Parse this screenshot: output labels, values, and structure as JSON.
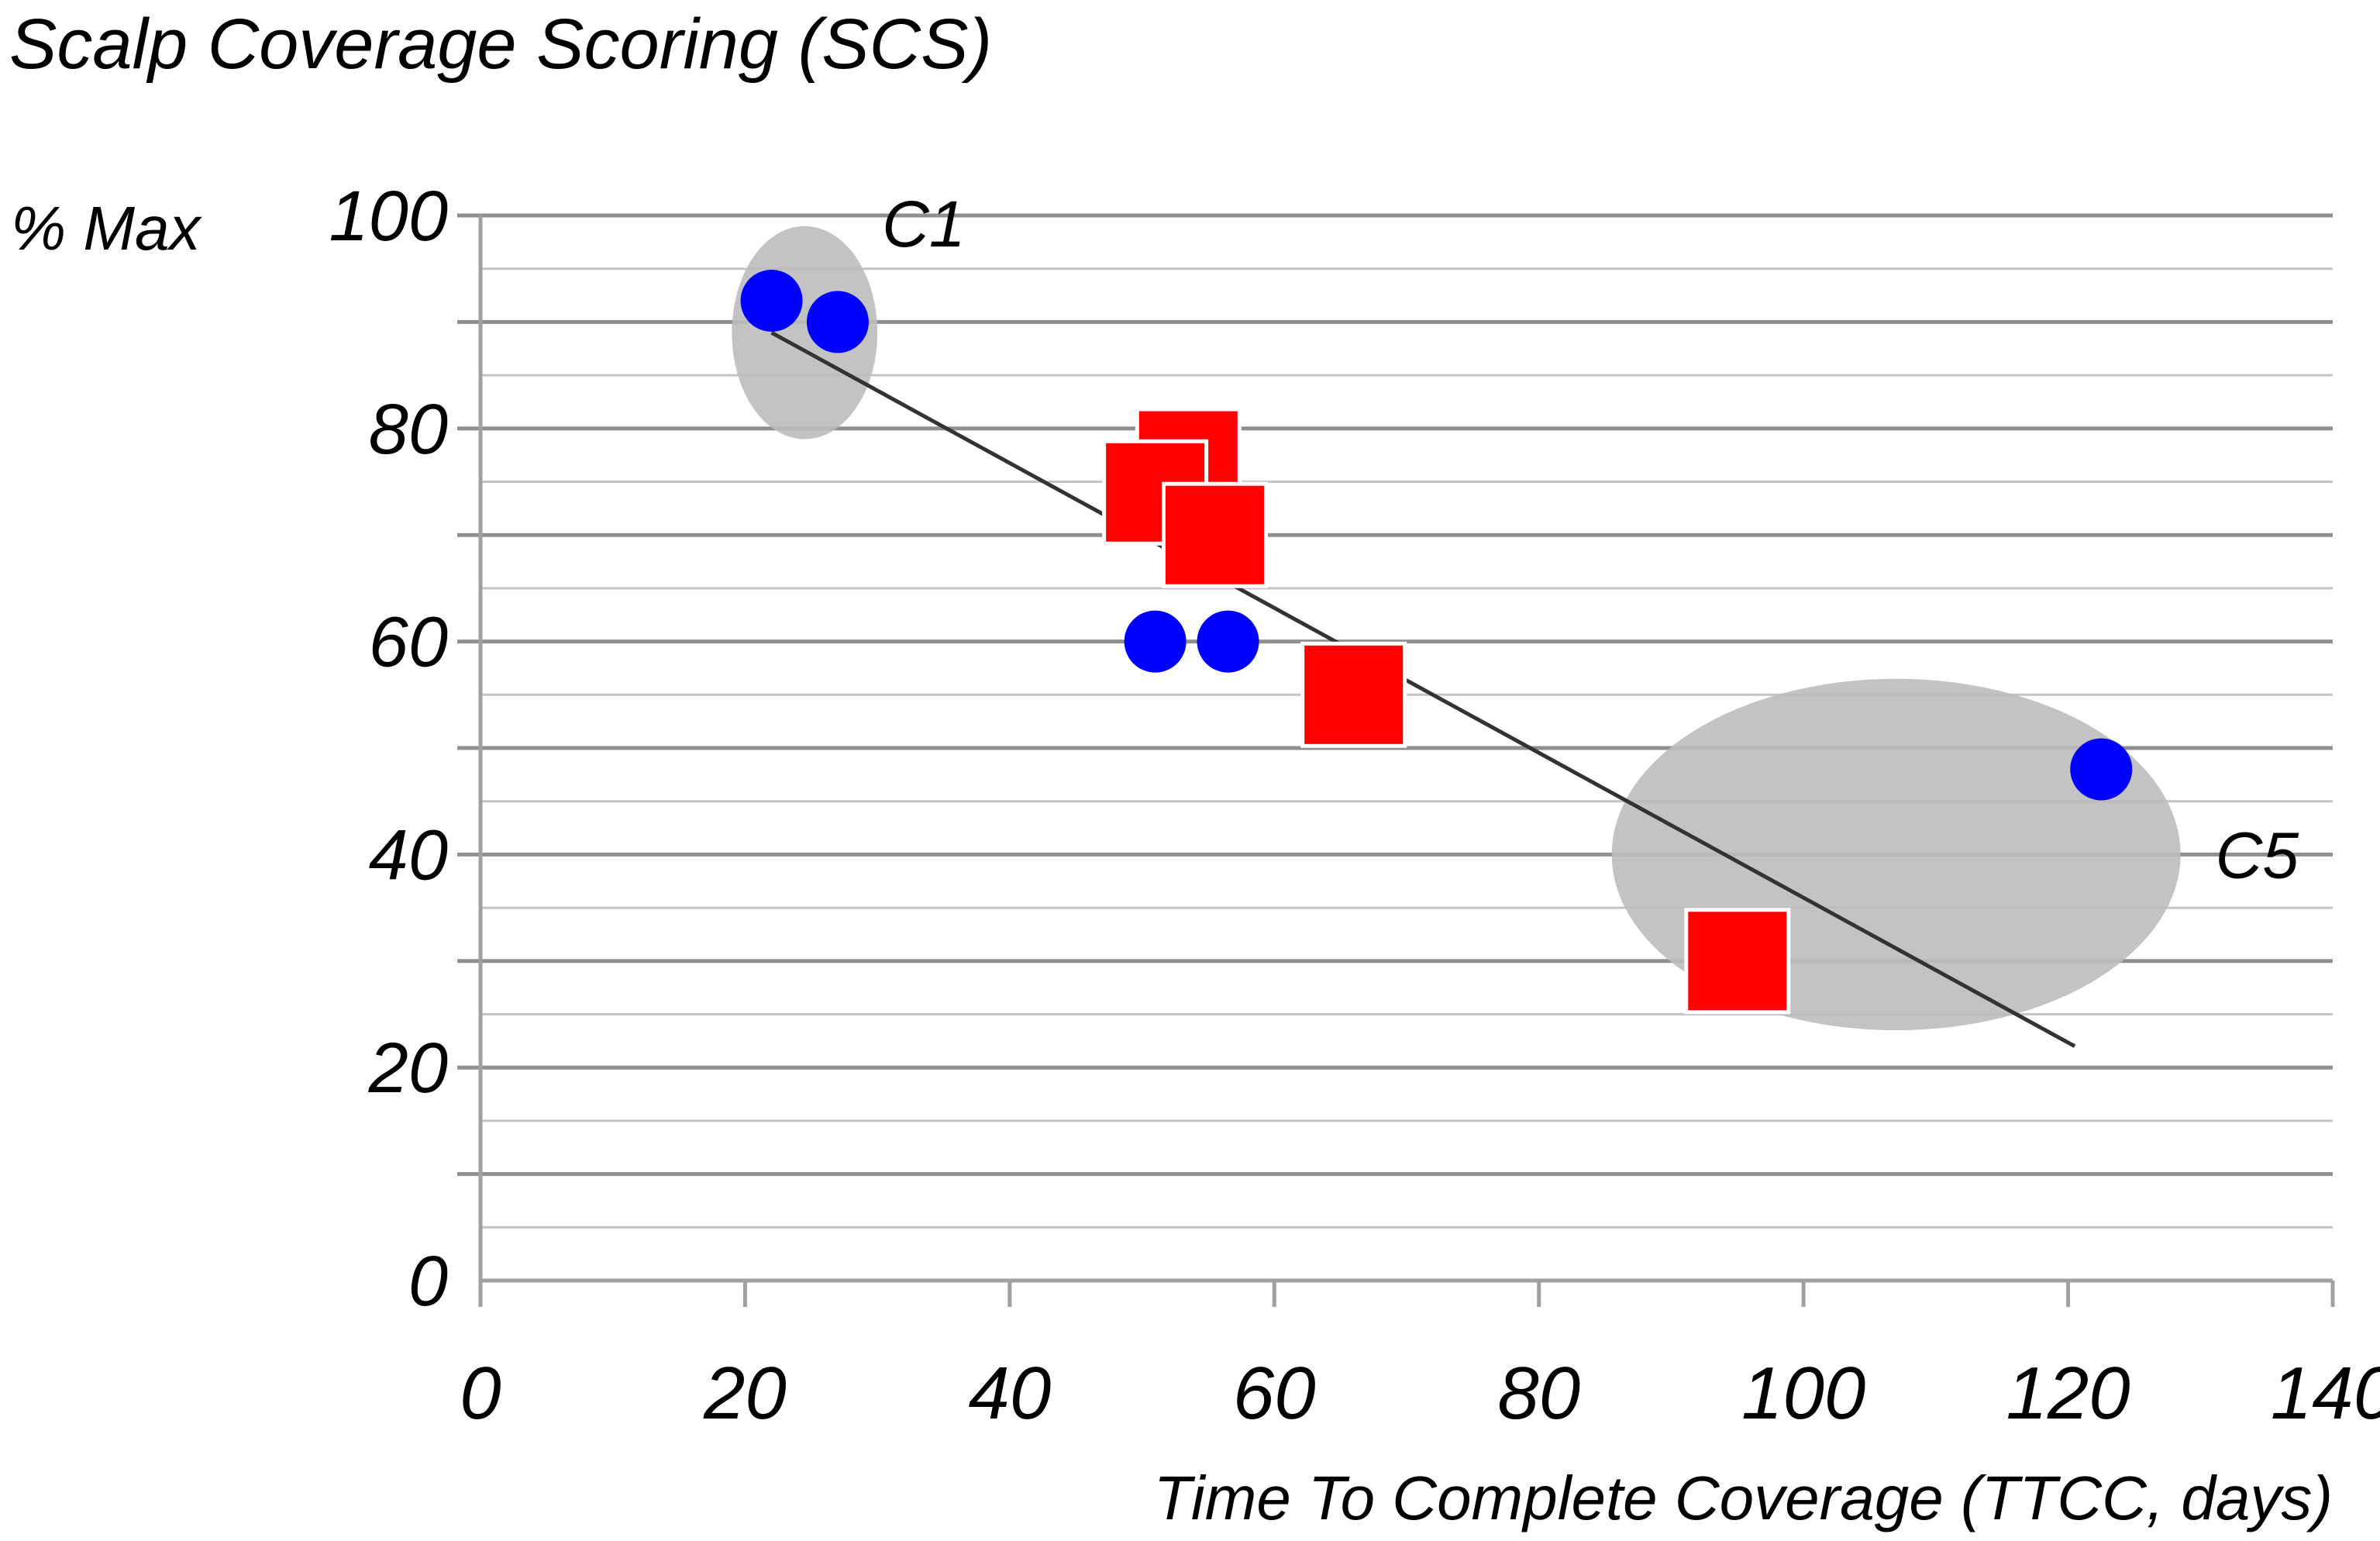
{
  "chart_data": {
    "type": "scatter",
    "title": "Scalp Coverage Scoring (SCS)",
    "ylabel": "% Max",
    "xlabel": "Time To Complete Coverage (TTCC, days)",
    "xlim": [
      0,
      140
    ],
    "ylim": [
      0,
      100
    ],
    "x_ticks": [
      "0",
      "20",
      "40",
      "60",
      "80",
      "100",
      "120",
      "140"
    ],
    "y_ticks": [
      "0",
      "20",
      "40",
      "60",
      "80",
      "100"
    ],
    "grid": true,
    "series": [
      {
        "name": "blue circles",
        "marker": "circle",
        "color": "#0000ff",
        "points": [
          {
            "x": 22,
            "y": 92
          },
          {
            "x": 27,
            "y": 90
          },
          {
            "x": 51,
            "y": 60
          },
          {
            "x": 56.5,
            "y": 60
          },
          {
            "x": 122.5,
            "y": 48
          }
        ]
      },
      {
        "name": "red squares",
        "marker": "square",
        "color": "#ff0000",
        "points": [
          {
            "x": 53.5,
            "y": 77
          },
          {
            "x": 51,
            "y": 74
          },
          {
            "x": 55.5,
            "y": 70
          },
          {
            "x": 66,
            "y": 55
          },
          {
            "x": 95,
            "y": 30
          }
        ]
      }
    ],
    "trendline": {
      "color": "#333333",
      "from": {
        "x": 22,
        "y": 89
      },
      "to": {
        "x": 120.5,
        "y": 22
      }
    },
    "clusters": [
      {
        "label": "C1",
        "cx": 24.5,
        "cy": 89,
        "rx": 5.5,
        "ry": 10
      },
      {
        "label": "C5",
        "cx": 107,
        "cy": 40,
        "rx": 21.5,
        "ry": 16.5
      }
    ]
  }
}
